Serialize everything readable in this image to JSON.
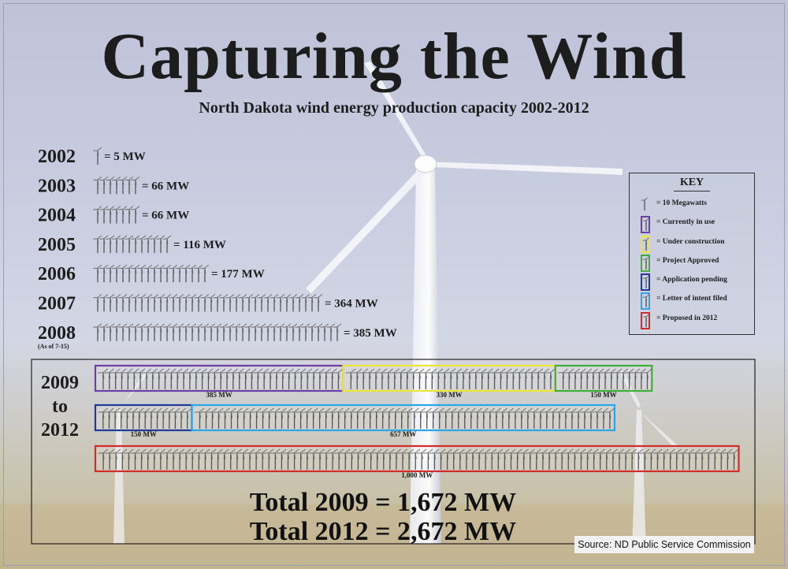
{
  "title": "Capturing the Wind",
  "subtitle": "North Dakota wind energy production capacity 2002-2012",
  "source": "Source: ND Public Service Commission",
  "colors": {
    "currently_in_use": "#6a3fa8",
    "under_construction": "#e8e83a",
    "project_approved": "#3fae3a",
    "application_pending": "#1f3a9a",
    "letter_of_intent_filed": "#2aa6e6",
    "proposed_in_2012": "#d42a2a"
  },
  "key": {
    "title": "KEY",
    "items": [
      {
        "label": "= 10 Megawatts",
        "status": "unit"
      },
      {
        "label": "= Currently in use",
        "status": "currently_in_use"
      },
      {
        "label": "= Under construction",
        "status": "under_construction"
      },
      {
        "label": "= Project Approved",
        "status": "project_approved"
      },
      {
        "label": "= Application pending",
        "status": "application_pending"
      },
      {
        "label": "= Letter of intent filed",
        "status": "letter_of_intent_filed"
      },
      {
        "label": "= Proposed in 2012",
        "status": "proposed_in_2012"
      }
    ]
  },
  "chart_data": {
    "type": "pictograph",
    "unit": "10 Megawatts per turbine icon",
    "years": [
      {
        "year": "2002",
        "mw": 5,
        "label": "= 5 MW"
      },
      {
        "year": "2003",
        "mw": 66,
        "label": "= 66 MW"
      },
      {
        "year": "2004",
        "mw": 66,
        "label": "= 66 MW"
      },
      {
        "year": "2005",
        "mw": 116,
        "label": "= 116 MW"
      },
      {
        "year": "2006",
        "mw": 177,
        "label": "= 177 MW"
      },
      {
        "year": "2007",
        "mw": 364,
        "label": "= 364 MW"
      },
      {
        "year": "2008",
        "mw": 385,
        "label": "= 385 MW",
        "note": "(As of 7-15)"
      }
    ],
    "projection": {
      "range_label": [
        "2009",
        "to",
        "2012"
      ],
      "rows": [
        [
          {
            "mw": 385,
            "label": "385 MW",
            "status": "currently_in_use"
          },
          {
            "mw": 330,
            "label": "330 MW",
            "status": "under_construction"
          },
          {
            "mw": 150,
            "label": "150 MW",
            "status": "project_approved"
          }
        ],
        [
          {
            "mw": 150,
            "label": "150 MW",
            "status": "application_pending"
          },
          {
            "mw": 657,
            "label": "657 MW",
            "status": "letter_of_intent_filed"
          }
        ],
        [
          {
            "mw": 1000,
            "label": "1,000 MW",
            "status": "proposed_in_2012"
          }
        ]
      ]
    },
    "totals": [
      {
        "label": "Total 2009 = 1,672 MW",
        "mw": 1672
      },
      {
        "label": "Total 2012 = 2,672 MW",
        "mw": 2672
      }
    ]
  }
}
